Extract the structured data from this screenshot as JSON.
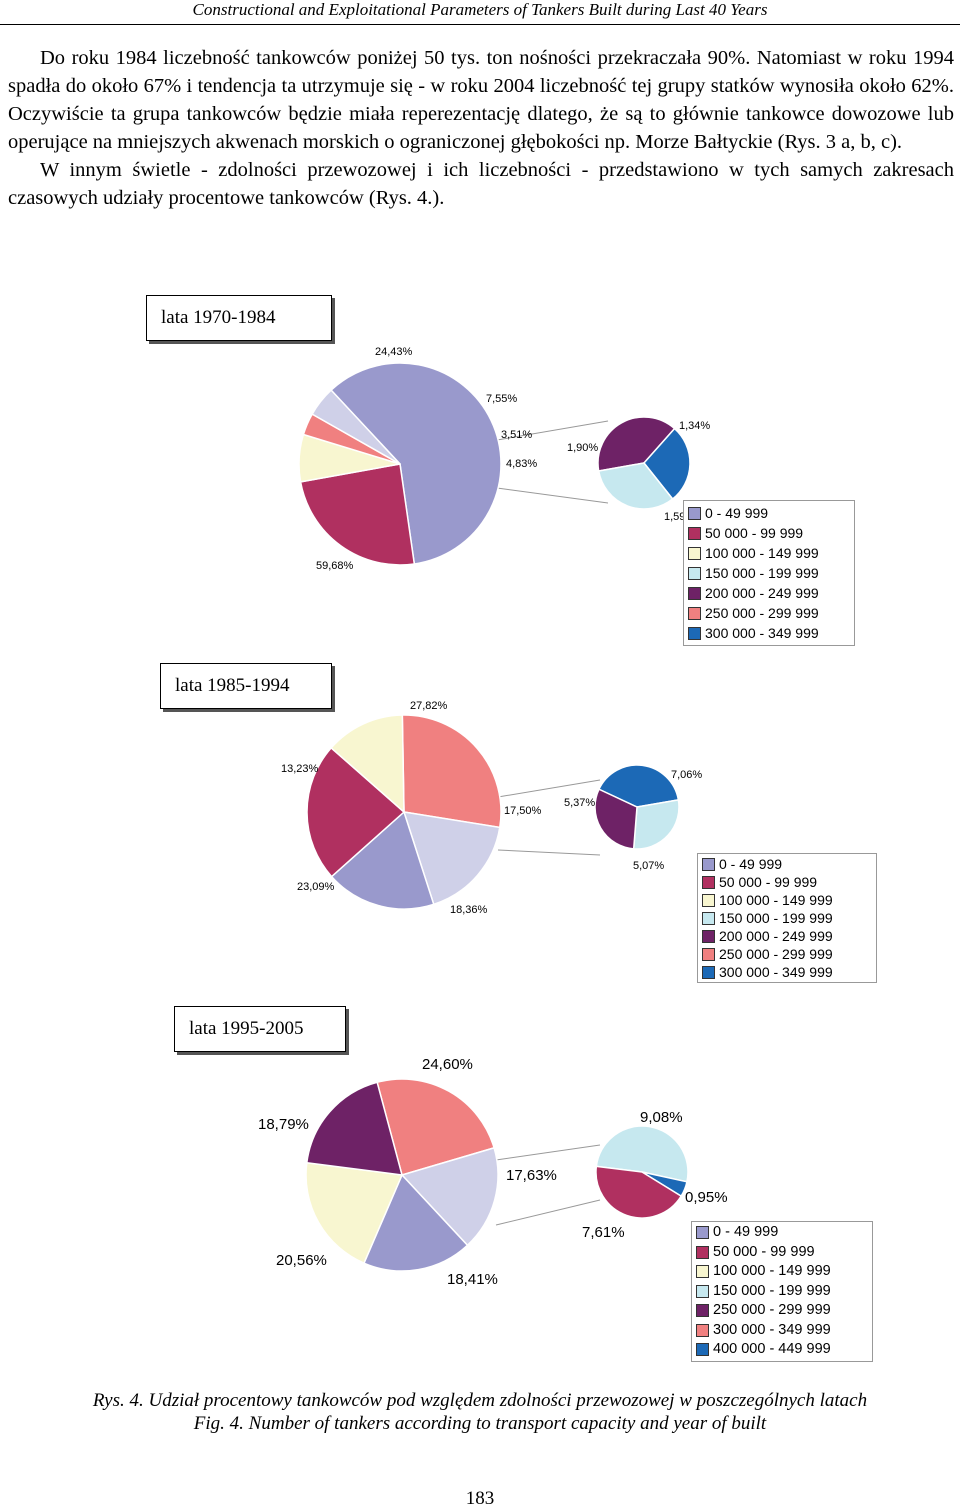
{
  "header": "Constructional and Exploitational Parameters of Tankers Built during Last 40 Years",
  "paragraphs": [
    "Do roku 1984 liczebność tankowców poniżej 50 tys. ton nośności przekraczała 90%. Natomiast w roku 1994 spadła do około 67% i tendencja ta utrzymuje się - w roku 2004 liczebność tej grupy statków wynosiła około 62%. Oczywiście ta grupa tankowców będzie miała reperezentację dlatego, że są to głównie tankowce dowozowe lub operujące na mniejszych akwenach morskich o ograniczonej głębokości np. Morze Bałtyckie (Rys. 3 a, b, c).",
    "W innym świetle - zdolności przewozowej i ich liczebności - przedstawiono w tych samych zakresach czasowych udziały procentowe tankowców (Rys. 4.)."
  ],
  "colors": {
    "c1": "#9999cc",
    "c2": "#b03060",
    "c3": "#f8f6d0",
    "c4": "#c6e8ef",
    "c5": "#6e2266",
    "c6": "#f08080",
    "c7": "#1c69b6",
    "c8": "#cfd0e8"
  },
  "chart_data": [
    {
      "type": "pie",
      "title": "lata 1970-1984",
      "main_slices": [
        {
          "label": "59,68%",
          "value": 59.68,
          "color": "c1"
        },
        {
          "label": "24,43%",
          "value": 24.43,
          "color": "c2"
        },
        {
          "label": "7,55%",
          "value": 7.55,
          "color": "c3"
        },
        {
          "label": "3,51%",
          "value": 3.51,
          "color": "c6"
        },
        {
          "label": "4,83%",
          "value": 4.83,
          "color": "c8"
        }
      ],
      "detail_slices": [
        {
          "label": "1,90%",
          "value": 1.9,
          "color": "c5"
        },
        {
          "label": "1,34%",
          "value": 1.34,
          "color": "c7"
        },
        {
          "label": "1,59%",
          "value": 1.59,
          "color": "c4"
        }
      ],
      "legend": [
        "0 - 49 999",
        "50 000 - 99 999",
        "100 000 - 149 999",
        "150 000 - 199 999",
        "200 000 - 249 999",
        "250 000 - 299 999",
        "300 000 - 349 999"
      ],
      "legend_colors": [
        "c1",
        "c2",
        "c3",
        "c4",
        "c5",
        "c6",
        "c7"
      ]
    },
    {
      "type": "pie",
      "title": "lata 1985-1994",
      "main_slices": [
        {
          "label": "27,82%",
          "value": 27.82,
          "color": "c6"
        },
        {
          "label": "17,50%",
          "value": 17.5,
          "color": "c8"
        },
        {
          "label": "18,36%",
          "value": 18.36,
          "color": "c1"
        },
        {
          "label": "23,09%",
          "value": 23.09,
          "color": "c2"
        },
        {
          "label": "13,23%",
          "value": 13.23,
          "color": "c3"
        }
      ],
      "detail_slices": [
        {
          "label": "7,06%",
          "value": 7.06,
          "color": "c7"
        },
        {
          "label": "5,07%",
          "value": 5.07,
          "color": "c4"
        },
        {
          "label": "5,37%",
          "value": 5.37,
          "color": "c5"
        }
      ],
      "legend": [
        "0 - 49 999",
        "50 000 - 99 999",
        "100 000 - 149 999",
        "150 000 - 199 999",
        "200 000 - 249 999",
        "250 000 - 299 999",
        "300 000 - 349 999"
      ],
      "legend_colors": [
        "c1",
        "c2",
        "c3",
        "c4",
        "c5",
        "c6",
        "c7"
      ]
    },
    {
      "type": "pie",
      "title": "lata 1995-2005",
      "main_slices": [
        {
          "label": "24,60%",
          "value": 24.6,
          "color": "c6"
        },
        {
          "label": "17,63%",
          "value": 17.63,
          "color": "c8"
        },
        {
          "label": "18,41%",
          "value": 18.41,
          "color": "c1"
        },
        {
          "label": "20,56%",
          "value": 20.56,
          "color": "c3"
        },
        {
          "label": "18,79%",
          "value": 18.79,
          "color": "c5"
        }
      ],
      "detail_slices": [
        {
          "label": "9,08%",
          "value": 9.08,
          "color": "c4"
        },
        {
          "label": "0,95%",
          "value": 0.95,
          "color": "c7"
        },
        {
          "label": "7,61%",
          "value": 7.61,
          "color": "c2"
        }
      ],
      "legend": [
        "0 - 49 999",
        "50 000 - 99 999",
        "100 000 - 149 999",
        "150 000 - 199 999",
        "250 000 - 299 999",
        "300 000 - 349 999",
        "400 000 - 449 999"
      ],
      "legend_colors": [
        "c1",
        "c2",
        "c3",
        "c4",
        "c5",
        "c6",
        "c7"
      ]
    }
  ],
  "caption_pl": "Rys. 4. Udział procentowy tankowców pod względem zdolności przewozowej w poszczególnych latach",
  "caption_en": "Fig. 4. Number of tankers according to transport capacity and year of built",
  "page_number": "183"
}
